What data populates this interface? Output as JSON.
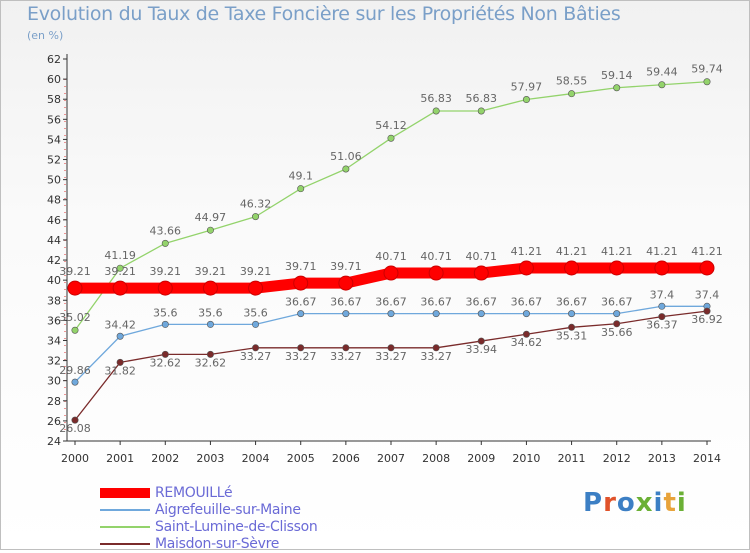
{
  "title": "Evolution du Taux de Taxe Foncière sur les Propriétés Non Bâties",
  "unit": "(en %)",
  "logo": {
    "text": "Proxiti",
    "colors": [
      "#3c7fc4",
      "#e0522a",
      "#3c7fc4",
      "#6bb035",
      "#3c7fc4",
      "#e8a33a",
      "#6bb035"
    ]
  },
  "chart_data": {
    "type": "line",
    "x": [
      2000,
      2001,
      2002,
      2003,
      2004,
      2005,
      2006,
      2007,
      2008,
      2009,
      2010,
      2011,
      2012,
      2013,
      2014
    ],
    "ylim": [
      24,
      62
    ],
    "yticks": [
      24,
      26,
      28,
      30,
      32,
      34,
      36,
      38,
      40,
      42,
      44,
      46,
      48,
      50,
      52,
      54,
      56,
      58,
      60,
      62
    ],
    "grid": false,
    "legend_position": "bottom-left",
    "series": [
      {
        "name": "REMOUILLé",
        "color": "#ff0000",
        "values": [
          39.21,
          39.21,
          39.21,
          39.21,
          39.21,
          39.71,
          39.71,
          40.71,
          40.71,
          40.71,
          41.21,
          41.21,
          41.21,
          41.21,
          41.21
        ],
        "labels": [
          "39.21",
          "39.21",
          "39.21",
          "39.21",
          "39.21",
          "39.71",
          "39.71",
          "40.71",
          "40.71",
          "40.71",
          "41.21",
          "41.21",
          "41.21",
          "41.21",
          "41.21"
        ]
      },
      {
        "name": "Aigrefeuille-sur-Maine",
        "color": "#6fa8dc",
        "values": [
          29.86,
          34.42,
          35.6,
          35.6,
          35.6,
          36.67,
          36.67,
          36.67,
          36.67,
          36.67,
          36.67,
          36.67,
          36.67,
          37.4,
          37.4
        ],
        "labels": [
          "29.86",
          "34.42",
          "35.6",
          "35.6",
          "35.6",
          "36.67",
          "36.67",
          "36.67",
          "36.67",
          "36.67",
          "36.67",
          "36.67",
          "36.67",
          "37.4",
          "37.4"
        ]
      },
      {
        "name": "Saint-Lumine-de-Clisson",
        "color": "#93d36b",
        "values": [
          35.02,
          41.19,
          43.66,
          44.97,
          46.32,
          49.1,
          51.06,
          54.12,
          56.83,
          56.83,
          57.97,
          58.55,
          59.14,
          59.44,
          59.74
        ],
        "labels": [
          "35.02",
          "41.19",
          "43.66",
          "44.97",
          "46.32",
          "49.1",
          "51.06",
          "54.12",
          "56.83",
          "56.83",
          "57.97",
          "58.55",
          "59.14",
          "59.44",
          "59.74"
        ]
      },
      {
        "name": "Maisdon-sur-Sèvre",
        "color": "#7a2b2b",
        "values": [
          26.08,
          31.82,
          32.62,
          32.62,
          33.27,
          33.27,
          33.27,
          33.27,
          33.27,
          33.94,
          34.62,
          35.31,
          35.66,
          36.37,
          36.92
        ],
        "labels": [
          "26.08",
          "31.82",
          "32.62",
          "32.62",
          "33.27",
          "33.27",
          "33.27",
          "33.27",
          "33.27",
          "33.94",
          "34.62",
          "35.31",
          "35.66",
          "36.37",
          "36.92"
        ]
      }
    ]
  }
}
